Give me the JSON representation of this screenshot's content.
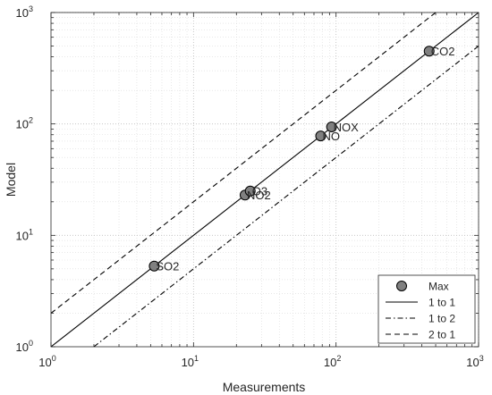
{
  "chart_data": {
    "type": "scatter",
    "xlabel": "Measurements",
    "ylabel": "Model",
    "xscale": "log",
    "yscale": "log",
    "xlim": [
      1,
      1000
    ],
    "ylim": [
      1,
      1000
    ],
    "grid": "on (major and minor, dotted)",
    "x_ticks": [
      {
        "value": 1,
        "base": "10",
        "exp": "0"
      },
      {
        "value": 10,
        "base": "10",
        "exp": "1"
      },
      {
        "value": 100,
        "base": "10",
        "exp": "2"
      },
      {
        "value": 1000,
        "base": "10",
        "exp": "3"
      }
    ],
    "y_ticks": [
      {
        "value": 1,
        "base": "10",
        "exp": "0"
      },
      {
        "value": 10,
        "base": "10",
        "exp": "1"
      },
      {
        "value": 100,
        "base": "10",
        "exp": "2"
      },
      {
        "value": 1000,
        "base": "10",
        "exp": "3"
      }
    ],
    "points": [
      {
        "label": "SO2",
        "x": 5.3,
        "y": 5.3
      },
      {
        "label": "NO2",
        "x": 23,
        "y": 23
      },
      {
        "label": "O3",
        "x": 25,
        "y": 25
      },
      {
        "label": "NO",
        "x": 78,
        "y": 78
      },
      {
        "label": "NOX",
        "x": 93,
        "y": 94
      },
      {
        "label": "CO2",
        "x": 450,
        "y": 450
      }
    ],
    "lines": [
      {
        "name": "1 to 1",
        "factor": 1,
        "dash": "solid"
      },
      {
        "name": "1 to 2",
        "factor": 0.5,
        "dash": "dashdot"
      },
      {
        "name": "2 to 1",
        "factor": 2,
        "dash": "dashed"
      }
    ],
    "marker_series_name": "Max",
    "marker_color": "#808080",
    "legend": {
      "position": "bottom-right",
      "entries": [
        "Max",
        "1 to 1",
        "1 to 2",
        "2 to 1"
      ]
    }
  }
}
